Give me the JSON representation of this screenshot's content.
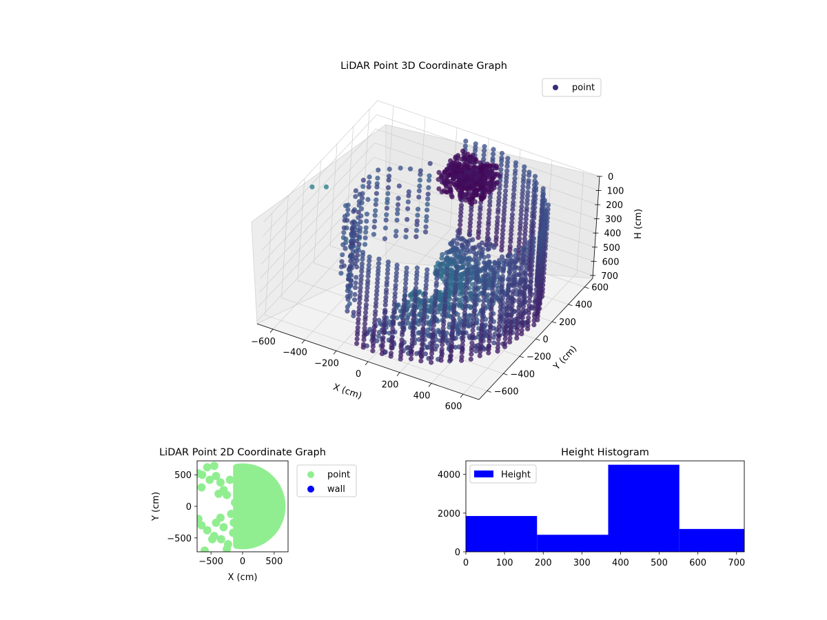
{
  "colors": {
    "viridis_low": "#440154",
    "viridis_mid": "#3b528b",
    "viridis_high": "#21918c",
    "point_2d": "#90ee90",
    "wall_2d": "#0000ff",
    "histogram_bar": "#0000ff",
    "pane": "#f2f2f2",
    "grid": "#cccccc"
  },
  "chart_data": [
    {
      "type": "scatter",
      "subtype": "3d",
      "title": "LiDAR Point 3D Coordinate Graph",
      "xlabel": "X (cm)",
      "ylabel": "Y (cm)",
      "zlabel": "H (cm)",
      "x_ticks": [
        "−600",
        "−400",
        "−200",
        "0",
        "200",
        "400",
        "600"
      ],
      "y_ticks": [
        "−600",
        "−400",
        "−200",
        "0",
        "200",
        "400",
        "600"
      ],
      "z_ticks": [
        "0",
        "100",
        "200",
        "300",
        "400",
        "500",
        "600",
        "700"
      ],
      "xlim": [
        -700,
        700
      ],
      "ylim": [
        -700,
        700
      ],
      "zlim": [
        0,
        720
      ],
      "z_axis_inverted": true,
      "colormap": "viridis",
      "legend": {
        "placement": "top-right",
        "entries": [
          "point"
        ]
      },
      "series": [
        {
          "name": "point",
          "structure": "vertical columns of points along a ring wall of radius ~650 cm spanning X ≈ −150…650, plus a dense ceiling cluster near X ≈ 0, Y ≈ 400 and scattered columns near X ≈ −550…−300",
          "outliers": [
            {
              "x": -650,
              "y": -200,
              "h": 40
            },
            {
              "x": -600,
              "y": -120,
              "h": 70
            },
            {
              "x": -500,
              "y": 150,
              "h": 560
            }
          ]
        }
      ]
    },
    {
      "type": "scatter",
      "title": "LiDAR Point 2D Coordinate Graph",
      "xlabel": "X (cm)",
      "ylabel": "Y (cm)",
      "x_ticks": [
        "−500",
        "0",
        "500"
      ],
      "y_ticks": [
        "−500",
        "0",
        "500"
      ],
      "xlim": [
        -720,
        720
      ],
      "ylim": [
        -720,
        720
      ],
      "legend": {
        "placement": "right-outside",
        "entries": [
          "point",
          "wall"
        ]
      },
      "series": [
        {
          "name": "point",
          "description": "filled half-disc of radius ~680 cm for X ≥ −150, plus scattered blobs at X ≈ −700…−200"
        },
        {
          "name": "wall",
          "points": []
        }
      ]
    },
    {
      "type": "bar",
      "subtype": "histogram",
      "title": "Height Histogram",
      "xlabel": "",
      "ylabel": "",
      "x_ticks": [
        "0",
        "100",
        "200",
        "300",
        "400",
        "500",
        "600",
        "700"
      ],
      "y_ticks": [
        "0",
        "2000",
        "4000"
      ],
      "xlim": [
        0,
        720
      ],
      "ylim": [
        0,
        4700
      ],
      "legend": {
        "placement": "top-left",
        "entries": [
          "Height"
        ]
      },
      "bin_edges": [
        0,
        184,
        368,
        552,
        720
      ],
      "values": [
        1850,
        880,
        4500,
        1180
      ]
    }
  ]
}
